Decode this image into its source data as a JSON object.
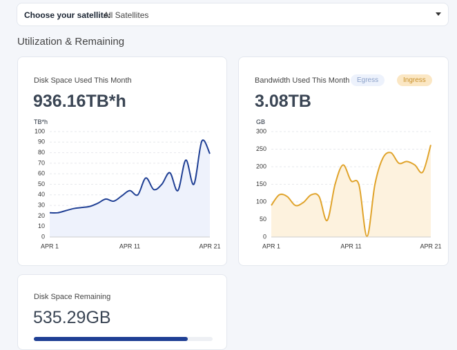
{
  "header": {
    "label": "Choose your satellite:",
    "selection": "All Satellites"
  },
  "section_title": "Utilization & Remaining",
  "chart_data": [
    {
      "type": "area",
      "title": "Disk Space Used This Month",
      "total": "936.16TB*h",
      "y_label": "TB*h",
      "categories": [
        "APR 1",
        null,
        null,
        null,
        null,
        null,
        null,
        null,
        null,
        null,
        "APR 11",
        null,
        null,
        null,
        null,
        null,
        null,
        null,
        null,
        null,
        "APR 21"
      ],
      "values": [
        23,
        23,
        25,
        27,
        28,
        29,
        32,
        36,
        34,
        39,
        44,
        40,
        56,
        45,
        50,
        61,
        44,
        73,
        50,
        91,
        79
      ],
      "color": "#1f3f94",
      "fill": "#eef2fc",
      "ylim": [
        0,
        100
      ],
      "yticks": [
        0,
        10,
        20,
        30,
        40,
        50,
        60,
        70,
        80,
        90,
        100
      ],
      "grid": true
    },
    {
      "type": "area",
      "title": "Bandwidth Used This Month",
      "total": "3.08TB",
      "y_label": "GB",
      "legend": [
        "Egress",
        "Ingress"
      ],
      "categories": [
        "APR 1",
        null,
        null,
        null,
        null,
        null,
        null,
        null,
        null,
        null,
        "APR 11",
        null,
        null,
        null,
        null,
        null,
        null,
        null,
        null,
        null,
        "APR 21"
      ],
      "values": [
        90,
        120,
        115,
        90,
        98,
        120,
        115,
        47,
        150,
        205,
        160,
        148,
        2,
        150,
        225,
        240,
        210,
        215,
        205,
        185,
        262
      ],
      "color": "#e0a32a",
      "fill": "#fdf2de",
      "ylim": [
        0,
        300
      ],
      "yticks": [
        0,
        50,
        100,
        150,
        200,
        250,
        300
      ],
      "grid": true
    }
  ],
  "remaining": {
    "title": "Disk Space Remaining",
    "value": "535.29GB",
    "progress": 86
  }
}
